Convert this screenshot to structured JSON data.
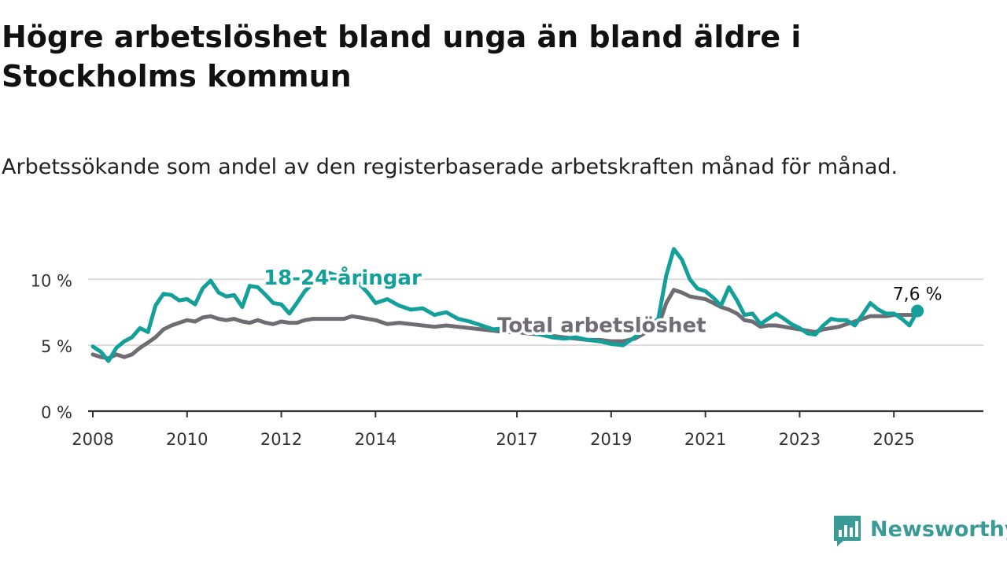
{
  "title": "Högre arbetslöshet bland unga än bland äldre i Stockholms kommun",
  "subtitle": "Arbetssökande som andel av den registerbaserade arbetskraften månad för månad.",
  "brand": {
    "name": "Newsworthy",
    "icon": "newsworthy-logo-icon",
    "color": "#3a9a96"
  },
  "chart_data": {
    "type": "line",
    "title": "Högre arbetslöshet bland unga än bland äldre i Stockholms kommun",
    "subtitle": "Arbetssökande som andel av den registerbaserade arbetskraften månad för månad.",
    "xlabel": "",
    "ylabel": "",
    "xlim": [
      2007.9,
      2026.9
    ],
    "ylim": [
      0,
      13
    ],
    "grid": true,
    "x_ticks": [
      2008,
      2010,
      2012,
      2014,
      2017,
      2019,
      2021,
      2023,
      2025
    ],
    "y_ticks": [
      {
        "value": 0,
        "label": "0 %"
      },
      {
        "value": 5,
        "label": "5 %"
      },
      {
        "value": 10,
        "label": "10 %"
      }
    ],
    "end_label": "7,6 %",
    "series": [
      {
        "name": "18-24-åringar",
        "color": "#14a09a",
        "x": [
          2008.0,
          2008.17,
          2008.33,
          2008.5,
          2008.67,
          2008.83,
          2009.0,
          2009.17,
          2009.33,
          2009.5,
          2009.67,
          2009.83,
          2010.0,
          2010.17,
          2010.33,
          2010.5,
          2010.67,
          2010.83,
          2011.0,
          2011.17,
          2011.33,
          2011.5,
          2011.67,
          2011.83,
          2012.0,
          2012.17,
          2012.33,
          2012.5,
          2012.67,
          2012.83,
          2013.0,
          2013.17,
          2013.33,
          2013.5,
          2013.67,
          2013.83,
          2014.0,
          2014.25,
          2014.5,
          2014.75,
          2015.0,
          2015.25,
          2015.5,
          2015.75,
          2016.0,
          2016.25,
          2016.5,
          2016.75,
          2017.0,
          2017.25,
          2017.5,
          2017.75,
          2018.0,
          2018.25,
          2018.5,
          2018.75,
          2019.0,
          2019.25,
          2019.5,
          2019.75,
          2020.0,
          2020.17,
          2020.33,
          2020.5,
          2020.67,
          2020.83,
          2021.0,
          2021.17,
          2021.33,
          2021.5,
          2021.67,
          2021.83,
          2022.0,
          2022.17,
          2022.33,
          2022.5,
          2022.67,
          2022.83,
          2023.0,
          2023.17,
          2023.33,
          2023.5,
          2023.67,
          2023.83,
          2024.0,
          2024.17,
          2024.33,
          2024.5,
          2024.67,
          2024.83,
          2025.0,
          2025.17,
          2025.33,
          2025.5
        ],
        "values": [
          4.9,
          4.5,
          3.8,
          4.8,
          5.3,
          5.6,
          6.3,
          6.0,
          8.0,
          8.9,
          8.8,
          8.4,
          8.5,
          8.1,
          9.3,
          9.9,
          9.0,
          8.7,
          8.8,
          7.9,
          9.5,
          9.4,
          8.8,
          8.2,
          8.1,
          7.4,
          8.2,
          9.1,
          9.7,
          10.2,
          10.5,
          10.3,
          10.7,
          10.2,
          9.6,
          9.0,
          8.2,
          8.5,
          8.0,
          7.7,
          7.8,
          7.3,
          7.5,
          7.0,
          6.8,
          6.5,
          6.2,
          6.3,
          6.1,
          6.0,
          5.8,
          5.6,
          5.5,
          5.6,
          5.4,
          5.3,
          5.1,
          5.0,
          5.6,
          6.3,
          7.0,
          10.3,
          12.3,
          11.5,
          10.0,
          9.3,
          9.1,
          8.6,
          8.0,
          9.4,
          8.4,
          7.3,
          7.4,
          6.6,
          7.0,
          7.4,
          7.0,
          6.6,
          6.3,
          5.9,
          5.8,
          6.5,
          7.0,
          6.9,
          6.9,
          6.5,
          7.3,
          8.2,
          7.7,
          7.4,
          7.4,
          7.0,
          6.5,
          7.6
        ]
      },
      {
        "name": "Total arbetslöshet",
        "color": "#6f6d73",
        "x": [
          2008.0,
          2008.17,
          2008.33,
          2008.5,
          2008.67,
          2008.83,
          2009.0,
          2009.17,
          2009.33,
          2009.5,
          2009.67,
          2009.83,
          2010.0,
          2010.17,
          2010.33,
          2010.5,
          2010.67,
          2010.83,
          2011.0,
          2011.17,
          2011.33,
          2011.5,
          2011.67,
          2011.83,
          2012.0,
          2012.17,
          2012.33,
          2012.5,
          2012.67,
          2012.83,
          2013.0,
          2013.17,
          2013.33,
          2013.5,
          2013.67,
          2013.83,
          2014.0,
          2014.25,
          2014.5,
          2014.75,
          2015.0,
          2015.25,
          2015.5,
          2015.75,
          2016.0,
          2016.25,
          2016.5,
          2016.75,
          2017.0,
          2017.25,
          2017.5,
          2017.75,
          2018.0,
          2018.25,
          2018.5,
          2018.75,
          2019.0,
          2019.25,
          2019.5,
          2019.75,
          2020.0,
          2020.17,
          2020.33,
          2020.5,
          2020.67,
          2020.83,
          2021.0,
          2021.17,
          2021.33,
          2021.5,
          2021.67,
          2021.83,
          2022.0,
          2022.17,
          2022.33,
          2022.5,
          2022.67,
          2022.83,
          2023.0,
          2023.17,
          2023.33,
          2023.5,
          2023.67,
          2023.83,
          2024.0,
          2024.17,
          2024.33,
          2024.5,
          2024.67,
          2024.83,
          2025.0,
          2025.17,
          2025.33,
          2025.5
        ],
        "values": [
          4.3,
          4.1,
          4.0,
          4.3,
          4.1,
          4.3,
          4.8,
          5.2,
          5.6,
          6.2,
          6.5,
          6.7,
          6.9,
          6.8,
          7.1,
          7.2,
          7.0,
          6.9,
          7.0,
          6.8,
          6.7,
          6.9,
          6.7,
          6.6,
          6.8,
          6.7,
          6.7,
          6.9,
          7.0,
          7.0,
          7.0,
          7.0,
          7.0,
          7.2,
          7.1,
          7.0,
          6.9,
          6.6,
          6.7,
          6.6,
          6.5,
          6.4,
          6.5,
          6.4,
          6.3,
          6.2,
          6.1,
          6.0,
          6.0,
          5.9,
          5.8,
          5.7,
          5.6,
          5.5,
          5.4,
          5.4,
          5.3,
          5.3,
          5.5,
          6.0,
          6.4,
          8.2,
          9.2,
          9.0,
          8.7,
          8.6,
          8.5,
          8.2,
          7.9,
          7.7,
          7.4,
          6.9,
          6.8,
          6.4,
          6.5,
          6.5,
          6.4,
          6.3,
          6.2,
          6.1,
          6.0,
          6.2,
          6.3,
          6.4,
          6.6,
          6.8,
          7.0,
          7.2,
          7.2,
          7.2,
          7.3,
          7.3,
          7.3,
          7.3
        ]
      }
    ]
  }
}
